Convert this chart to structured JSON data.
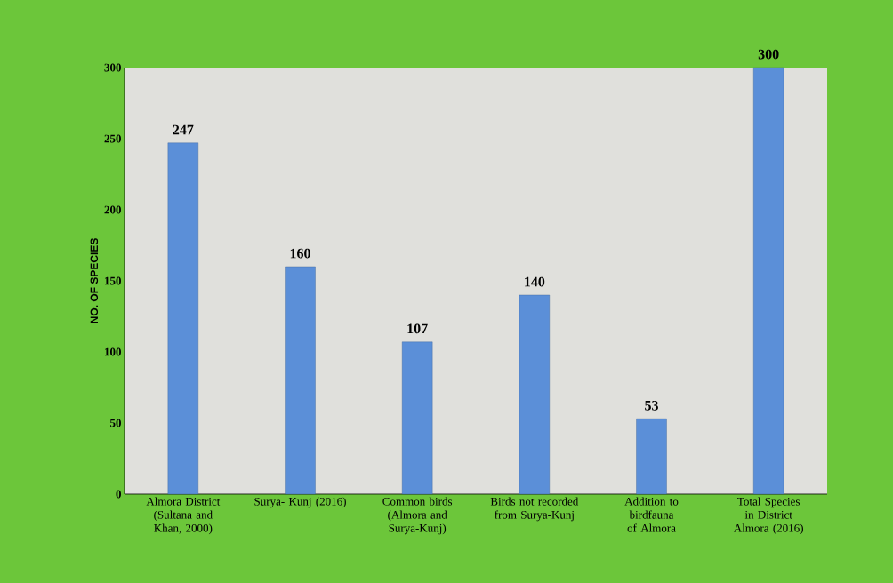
{
  "chart_data": {
    "type": "bar",
    "ylabel": "NO. OF SPECIES",
    "categories": [
      "Almora District (Sultana and Khan, 2000)",
      "Surya- Kunj (2016)",
      "Common birds (Almora and Surya-Kunj)",
      "Birds not recorded from Surya-Kunj",
      "Addition to birdfauna of Almora",
      "Total Species in District Almora (2016)"
    ],
    "values": [
      247,
      160,
      107,
      140,
      53,
      300
    ],
    "color": "#5b8fd8",
    "ylim": [
      0,
      300
    ],
    "yticks": [
      0,
      50,
      100,
      150,
      200,
      250,
      300
    ],
    "data_labels": true
  }
}
